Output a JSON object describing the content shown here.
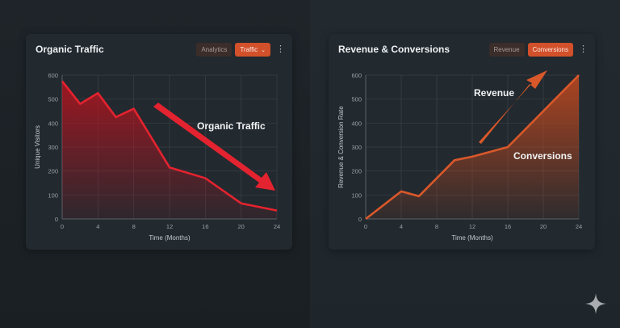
{
  "cards": [
    {
      "title": "Organic Traffic",
      "buttons": [
        {
          "label": "Analytics",
          "state": "inactive"
        },
        {
          "label": "Traffic",
          "state": "active",
          "has_dropdown": true
        }
      ],
      "menu_icon": "kebab-vertical-icon"
    },
    {
      "title": "Revenue & Conversions",
      "buttons": [
        {
          "label": "Revenue",
          "state": "inactive"
        },
        {
          "label": "Conversions",
          "state": "active"
        }
      ],
      "menu_icon": "kebab-vertical-icon"
    }
  ],
  "colors": {
    "traffic_line": "#e3232f",
    "revenue_line": "#d9582a",
    "active_button": "#d2502a",
    "inactive_button": "#3b2d29",
    "card_bg": "#22292f"
  },
  "watermark_icon": "sparkle-icon",
  "chart_data": [
    {
      "type": "area",
      "title": "Organic Traffic",
      "xlabel": "Time (Months)",
      "ylabel": "Unique Visitors",
      "x_ticks": [
        "0",
        "4",
        "8",
        "12",
        "16",
        "20",
        "24"
      ],
      "y_ticks": [
        "0",
        "100",
        "200",
        "300",
        "400",
        "500",
        "600"
      ],
      "xlim": [
        0,
        24
      ],
      "ylim": [
        0,
        600
      ],
      "grid": true,
      "series": [
        {
          "name": "Organic Traffic",
          "x": [
            0,
            2,
            4,
            6,
            8,
            12,
            16,
            20,
            24
          ],
          "values": [
            575,
            480,
            525,
            425,
            460,
            215,
            170,
            65,
            35
          ]
        }
      ],
      "annotations": [
        {
          "text": "Organic Traffic",
          "type": "label"
        },
        {
          "type": "arrow",
          "direction": "down-right"
        }
      ]
    },
    {
      "type": "area",
      "title": "Revenue & Conversions",
      "xlabel": "Time (Months)",
      "ylabel": "Revenue & Conversion Rate",
      "x_ticks": [
        "0",
        "4",
        "8",
        "12",
        "16",
        "20",
        "24"
      ],
      "y_ticks": [
        "0",
        "100",
        "200",
        "300",
        "400",
        "500",
        "600"
      ],
      "xlim": [
        0,
        24
      ],
      "ylim": [
        0,
        600
      ],
      "grid": true,
      "series": [
        {
          "name": "Conversions",
          "x": [
            0,
            4,
            6,
            10,
            12,
            16,
            20,
            24
          ],
          "values": [
            0,
            115,
            95,
            245,
            260,
            300,
            450,
            600
          ]
        }
      ],
      "annotations": [
        {
          "text": "Revenue",
          "type": "label"
        },
        {
          "text": "Conversions",
          "type": "label"
        },
        {
          "type": "arrow",
          "direction": "up-right"
        }
      ]
    }
  ]
}
